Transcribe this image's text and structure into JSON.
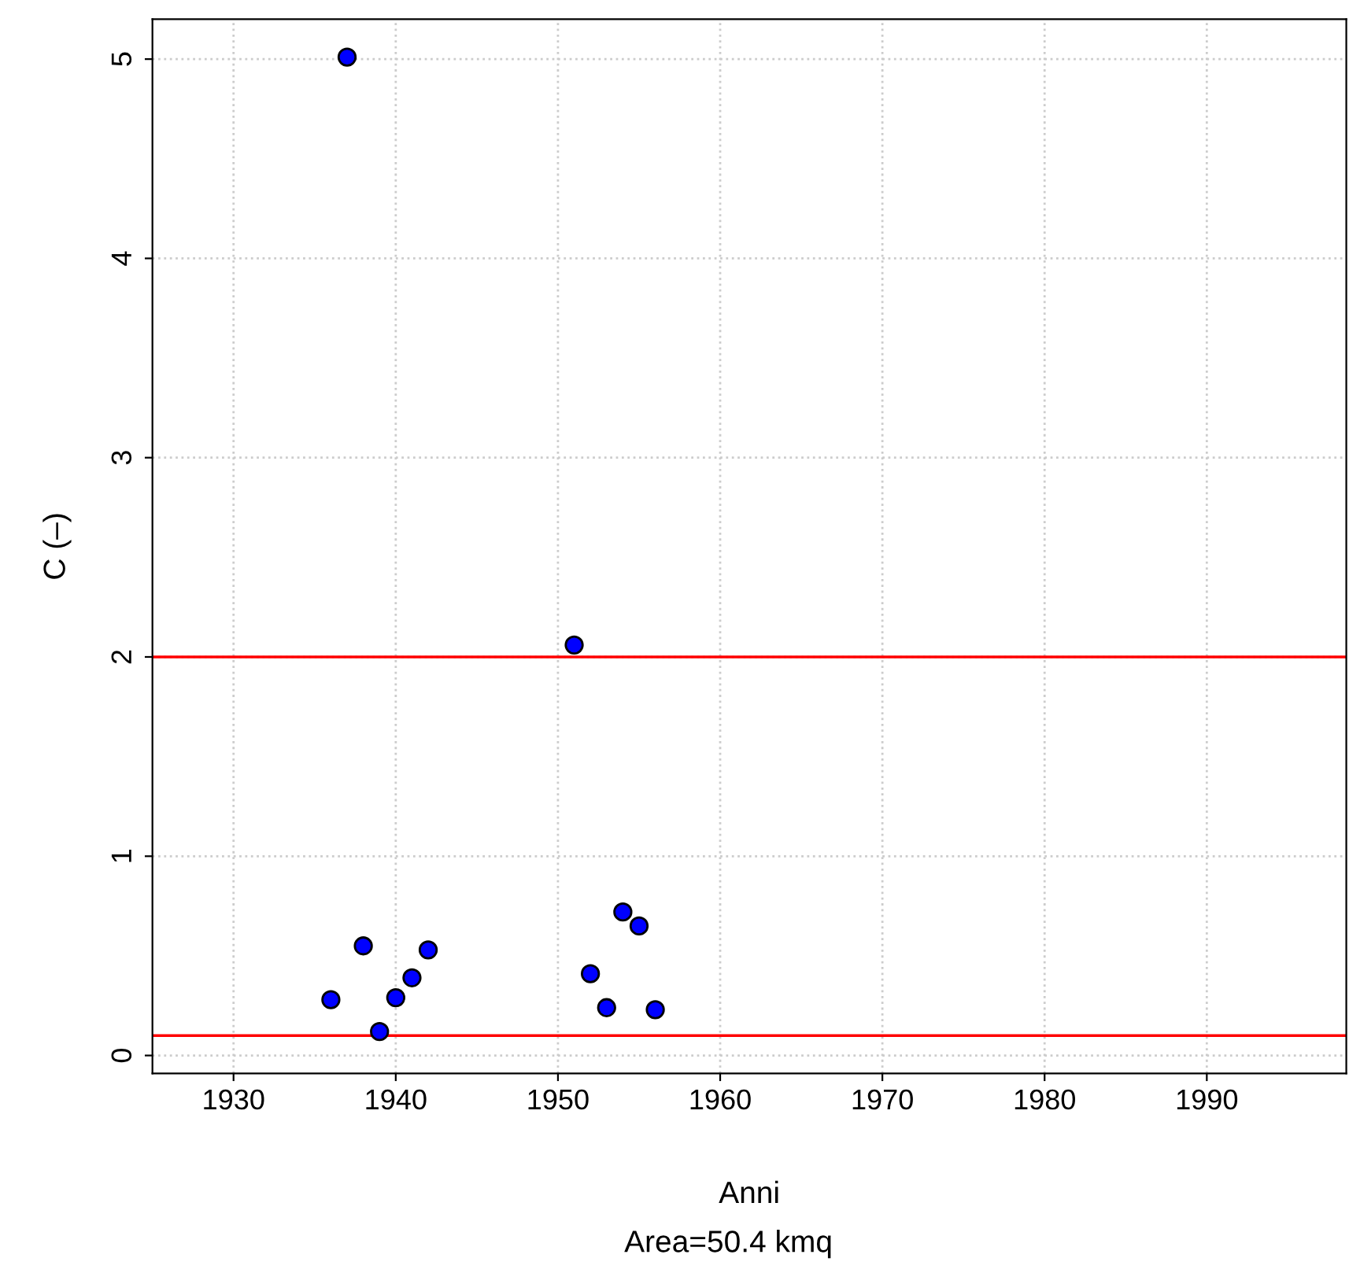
{
  "chart_data": {
    "type": "scatter",
    "xlabel": "Anni",
    "ylabel": "C (–)",
    "annotations": [
      "Area=50.4 kmq"
    ],
    "x": [
      1936,
      1937,
      1938,
      1939,
      1940,
      1941,
      1942,
      1951,
      1952,
      1953,
      1954,
      1955,
      1956
    ],
    "series": [
      {
        "color": "#0000ff",
        "values": [
          0.28,
          5.01,
          0.55,
          0.12,
          0.29,
          0.39,
          0.53,
          2.06,
          0.41,
          0.24,
          0.72,
          0.65,
          0.23
        ]
      }
    ],
    "xlim": [
      1925,
      1998.6
    ],
    "ylim": [
      -0.09,
      5.2
    ],
    "xticks": [
      1930,
      1940,
      1950,
      1960,
      1970,
      1980,
      1990
    ],
    "yticks": [
      0,
      1,
      2,
      3,
      4,
      5
    ],
    "ref_lines": [
      {
        "axis": "y",
        "value": 2,
        "color": "#ff0000"
      },
      {
        "axis": "y",
        "value": 0.1,
        "color": "#ff0000"
      }
    ],
    "grid": true,
    "marker": "circle"
  }
}
